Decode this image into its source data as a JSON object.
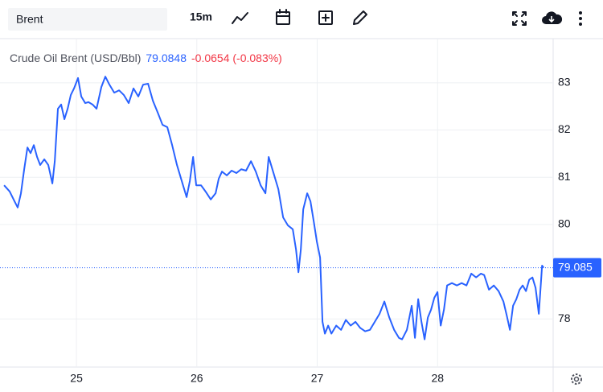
{
  "toolbar": {
    "symbol": "Brent",
    "interval": "15m"
  },
  "chart_data": {
    "type": "line",
    "title": "Crude Oil Brent (USD/Bbl)",
    "price": "79.0848",
    "change": "-0.0654 (-0.083%)",
    "last_price": 79.085,
    "xlim": [
      24.365,
      28.96
    ],
    "xticks": [
      25,
      26,
      27,
      28
    ],
    "ylim": [
      77.0,
      83.9
    ],
    "yticks": [
      78,
      80,
      81,
      82,
      83
    ],
    "grid": true,
    "x": [
      24.399,
      24.445,
      24.486,
      24.512,
      24.539,
      24.566,
      24.593,
      24.619,
      24.646,
      24.673,
      24.699,
      24.733,
      24.766,
      24.8,
      24.82,
      24.846,
      24.873,
      24.9,
      24.927,
      24.953,
      24.98,
      25.013,
      25.04,
      25.073,
      25.1,
      25.134,
      25.167,
      25.207,
      25.24,
      25.274,
      25.314,
      25.354,
      25.394,
      25.434,
      25.474,
      25.514,
      25.554,
      25.595,
      25.635,
      25.675,
      25.715,
      25.755,
      25.795,
      25.835,
      25.875,
      25.915,
      25.942,
      25.969,
      25.995,
      26.035,
      26.075,
      26.116,
      26.156,
      26.182,
      26.209,
      26.249,
      26.289,
      26.329,
      26.369,
      26.409,
      26.45,
      26.49,
      26.53,
      26.57,
      26.597,
      26.637,
      26.677,
      26.717,
      26.757,
      26.797,
      26.824,
      26.844,
      26.864,
      26.884,
      26.917,
      26.944,
      26.971,
      26.997,
      27.024,
      27.044,
      27.064,
      27.091,
      27.118,
      27.158,
      27.198,
      27.238,
      27.278,
      27.318,
      27.358,
      27.398,
      27.438,
      27.478,
      27.518,
      27.558,
      27.599,
      27.639,
      27.679,
      27.705,
      27.745,
      27.785,
      27.812,
      27.839,
      27.866,
      27.892,
      27.919,
      27.946,
      27.973,
      27.999,
      28.026,
      28.053,
      28.079,
      28.119,
      28.16,
      28.2,
      28.24,
      28.28,
      28.32,
      28.36,
      28.387,
      28.427,
      28.467,
      28.507,
      28.547,
      28.574,
      28.601,
      28.627,
      28.654,
      28.681,
      28.707,
      28.734,
      28.761,
      28.788,
      28.814,
      28.841,
      28.868,
      28.881
    ],
    "series": [
      {
        "name": "Crude Oil Brent",
        "color": "#2962ff",
        "values": [
          80.83,
          80.7,
          80.49,
          80.36,
          80.66,
          81.17,
          81.63,
          81.51,
          81.68,
          81.43,
          81.26,
          81.38,
          81.26,
          80.87,
          81.34,
          82.45,
          82.54,
          82.23,
          82.45,
          82.74,
          82.88,
          83.1,
          82.71,
          82.57,
          82.59,
          82.54,
          82.45,
          82.91,
          83.13,
          82.96,
          82.79,
          82.84,
          82.74,
          82.57,
          82.88,
          82.71,
          82.96,
          82.98,
          82.62,
          82.37,
          82.11,
          82.06,
          81.68,
          81.26,
          80.92,
          80.58,
          80.92,
          81.43,
          80.83,
          80.83,
          80.69,
          80.53,
          80.66,
          80.97,
          81.12,
          81.04,
          81.14,
          81.09,
          81.17,
          81.14,
          81.34,
          81.12,
          80.83,
          80.66,
          81.43,
          81.09,
          80.75,
          80.15,
          79.98,
          79.9,
          79.47,
          78.99,
          79.47,
          80.32,
          80.66,
          80.49,
          80.07,
          79.64,
          79.3,
          77.94,
          77.69,
          77.86,
          77.69,
          77.86,
          77.77,
          77.98,
          77.86,
          77.94,
          77.81,
          77.74,
          77.77,
          77.94,
          78.11,
          78.37,
          78.03,
          77.77,
          77.6,
          77.57,
          77.77,
          78.28,
          77.6,
          78.42,
          77.94,
          77.57,
          78.03,
          78.2,
          78.45,
          78.57,
          77.86,
          78.2,
          78.71,
          78.76,
          78.71,
          78.76,
          78.71,
          78.96,
          78.88,
          78.96,
          78.93,
          78.62,
          78.71,
          78.59,
          78.37,
          78.08,
          77.77,
          78.28,
          78.42,
          78.62,
          78.71,
          78.59,
          78.83,
          78.88,
          78.66,
          78.11,
          79.13,
          79.085
        ]
      }
    ]
  }
}
